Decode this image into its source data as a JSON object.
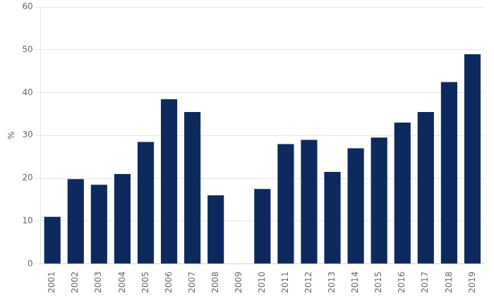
{
  "chart_data": {
    "type": "bar",
    "categories": [
      "2001",
      "2002",
      "2003",
      "2004",
      "2005",
      "2006",
      "2007",
      "2008",
      "2009",
      "2010",
      "2011",
      "2012",
      "2013",
      "2014",
      "2015",
      "2016",
      "2017",
      "2018",
      "2019"
    ],
    "values": [
      11.0,
      19.8,
      18.5,
      21.0,
      28.5,
      38.5,
      35.5,
      16.0,
      0.0,
      17.5,
      28.0,
      29.0,
      21.5,
      27.0,
      29.5,
      33.0,
      35.5,
      42.5,
      49.0
    ],
    "color": "#0d2a5e",
    "ylabel": "%",
    "ylim": [
      0,
      60
    ],
    "yticks": [
      0,
      10,
      20,
      30,
      40,
      50,
      60
    ],
    "grid": true
  }
}
